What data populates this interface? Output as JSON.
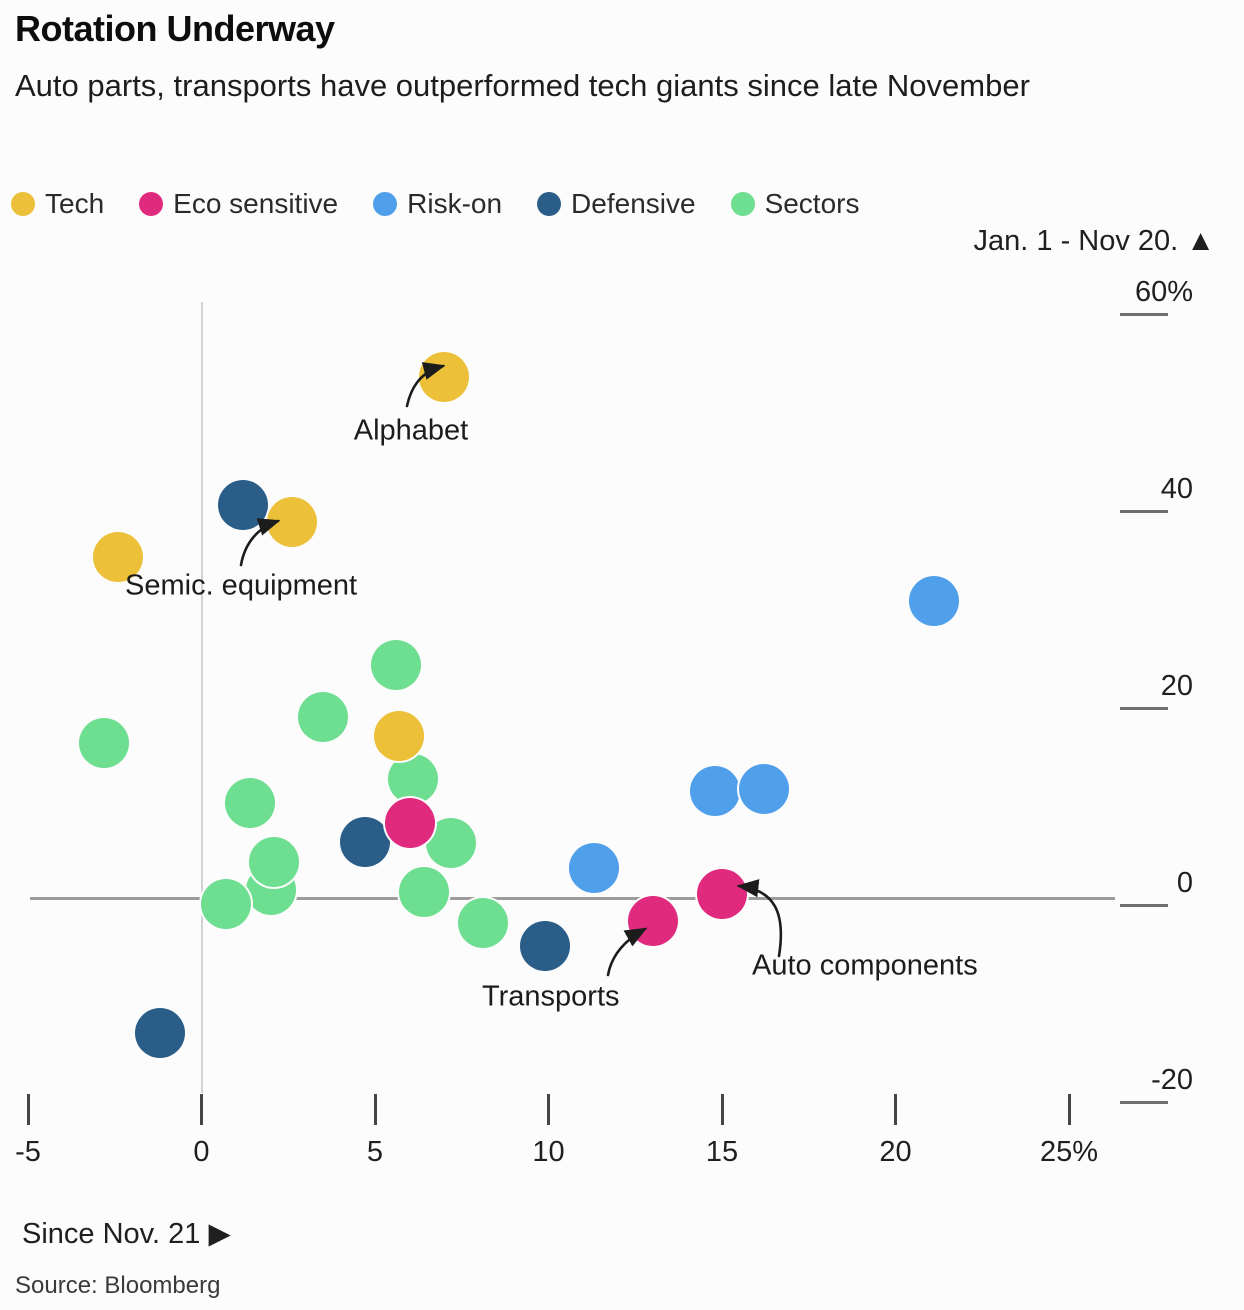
{
  "header": {
    "title": "Rotation Underway",
    "subtitle": "Auto parts, transports have outperformed tech giants since late November"
  },
  "legend": [
    {
      "label": "Tech",
      "color": "#ecc039"
    },
    {
      "label": "Eco sensitive",
      "color": "#df2a7e"
    },
    {
      "label": "Risk-on",
      "color": "#4f9fea"
    },
    {
      "label": "Defensive",
      "color": "#2a5d88"
    },
    {
      "label": "Sectors",
      "color": "#6ede90"
    }
  ],
  "axes": {
    "y_label": "Jan. 1 - Nov 20. ▲",
    "x_label": "Since Nov. 21 ▶",
    "y_ticks": [
      {
        "label": "60%",
        "value": 60
      },
      {
        "label": "40",
        "value": 40
      },
      {
        "label": "20",
        "value": 20
      },
      {
        "label": "0",
        "value": 0
      },
      {
        "label": "-20",
        "value": -20
      }
    ],
    "x_ticks": [
      {
        "label": "-5",
        "value": -5
      },
      {
        "label": "0",
        "value": 0
      },
      {
        "label": "5",
        "value": 5
      },
      {
        "label": "10",
        "value": 10
      },
      {
        "label": "15",
        "value": 15
      },
      {
        "label": "20",
        "value": 20
      },
      {
        "label": "25%",
        "value": 25
      }
    ]
  },
  "source": "Source: Bloomberg",
  "chart_data": {
    "type": "scatter",
    "title": "Rotation Underway",
    "subtitle": "Auto parts, transports have outperformed tech giants since late November",
    "xlabel": "Since Nov. 21 (%)",
    "ylabel": "Jan. 1 - Nov 20. (%)",
    "xlim": [
      -5,
      27
    ],
    "ylim": [
      -25,
      62
    ],
    "grid": false,
    "legend_position": "top",
    "series": [
      {
        "name": "Tech",
        "color": "#ecc039",
        "points": [
          {
            "x": 7.0,
            "y": 53.0
          },
          {
            "x": 2.6,
            "y": 38.3
          },
          {
            "x": -2.4,
            "y": 34.7
          },
          {
            "x": 5.7,
            "y": 16.5
          }
        ]
      },
      {
        "name": "Eco sensitive",
        "color": "#df2a7e",
        "points": [
          {
            "x": 6.0,
            "y": 7.7
          },
          {
            "x": 13.0,
            "y": -2.2
          },
          {
            "x": 15.0,
            "y": 0.5
          }
        ]
      },
      {
        "name": "Risk-on",
        "color": "#4f9fea",
        "points": [
          {
            "x": 21.1,
            "y": 30.3
          },
          {
            "x": 14.8,
            "y": 11.0
          },
          {
            "x": 16.2,
            "y": 11.2
          },
          {
            "x": 11.3,
            "y": 3.1
          }
        ]
      },
      {
        "name": "Defensive",
        "color": "#2a5d88",
        "points": [
          {
            "x": 1.2,
            "y": 40.0
          },
          {
            "x": 4.7,
            "y": 5.8
          },
          {
            "x": 9.9,
            "y": -4.8
          },
          {
            "x": -1.2,
            "y": -13.6
          }
        ]
      },
      {
        "name": "Sectors",
        "color": "#6ede90",
        "points": [
          {
            "x": -2.8,
            "y": 15.8
          },
          {
            "x": 5.6,
            "y": 23.8
          },
          {
            "x": 3.5,
            "y": 18.5
          },
          {
            "x": 6.1,
            "y": 12.2
          },
          {
            "x": 1.4,
            "y": 9.7
          },
          {
            "x": 7.2,
            "y": 5.7
          },
          {
            "x": 2.0,
            "y": 0.9
          },
          {
            "x": 2.1,
            "y": 3.8
          },
          {
            "x": 0.7,
            "y": -0.5
          },
          {
            "x": 6.4,
            "y": 0.7
          },
          {
            "x": 8.1,
            "y": -2.4
          }
        ]
      }
    ],
    "annotations": [
      {
        "label": "Alphabet",
        "series": "Tech",
        "target": {
          "x": 7.0,
          "y": 53.0
        }
      },
      {
        "label": "Semic. equipment",
        "series": "Tech",
        "target": {
          "x": 2.6,
          "y": 38.3
        }
      },
      {
        "label": "Transports",
        "series": "Eco sensitive",
        "target": {
          "x": 13.0,
          "y": -2.2
        }
      },
      {
        "label": "Auto components",
        "series": "Eco sensitive",
        "target": {
          "x": 15.0,
          "y": 0.5
        }
      }
    ]
  }
}
